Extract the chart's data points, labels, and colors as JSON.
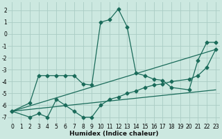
{
  "xlabel": "Humidex (Indice chaleur)",
  "background_color": "#cce8e0",
  "grid_color": "#aaccC4",
  "line_color": "#1a6b5a",
  "xlim": [
    -0.5,
    23.5
  ],
  "ylim": [
    -7.5,
    2.7
  ],
  "yticks": [
    2,
    1,
    0,
    -1,
    -2,
    -3,
    -4,
    -5,
    -6,
    -7
  ],
  "xticks": [
    0,
    1,
    2,
    3,
    4,
    5,
    6,
    7,
    8,
    9,
    10,
    11,
    12,
    13,
    14,
    15,
    16,
    17,
    18,
    19,
    20,
    21,
    22,
    23
  ],
  "series1_x": [
    0,
    2,
    3,
    4,
    5,
    6,
    7,
    8,
    9,
    10,
    11,
    12,
    13,
    14,
    15,
    16,
    17,
    18,
    20,
    21,
    22,
    23
  ],
  "series1_y": [
    -6.5,
    -5.8,
    -3.5,
    -3.5,
    -3.5,
    -3.5,
    -3.5,
    -4.2,
    -4.3,
    1.0,
    1.2,
    2.1,
    0.6,
    -3.3,
    -3.5,
    -3.8,
    -3.9,
    -4.5,
    -4.7,
    -2.2,
    -0.7,
    -0.7
  ],
  "series2_x": [
    0,
    2,
    3,
    4,
    5,
    6,
    7,
    8,
    9,
    10,
    11,
    12,
    13,
    14,
    15,
    16,
    17,
    18,
    20,
    21,
    22,
    23
  ],
  "series2_y": [
    -6.5,
    -7.0,
    -6.7,
    -7.0,
    -5.5,
    -6.0,
    -6.5,
    -7.0,
    -7.0,
    -6.0,
    -5.5,
    -5.3,
    -5.0,
    -4.8,
    -4.5,
    -4.3,
    -4.2,
    -4.0,
    -3.8,
    -3.5,
    -2.8,
    -1.3
  ],
  "series3_x": [
    0,
    23
  ],
  "series3_y": [
    -6.5,
    -4.7
  ],
  "series4_x": [
    0,
    23
  ],
  "series4_y": [
    -6.5,
    -1.3
  ]
}
